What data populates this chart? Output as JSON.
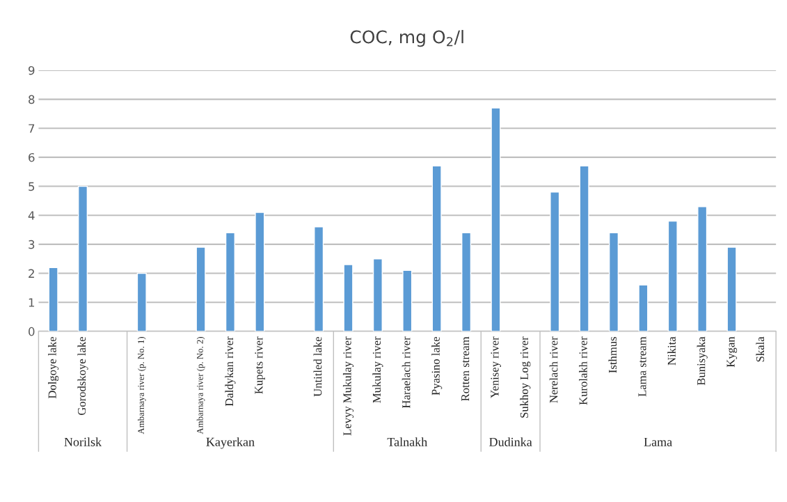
{
  "chart_data": {
    "type": "bar",
    "title": "COC, mg O$_{2}$/l",
    "categories": [
      "Dolgoye lake",
      "Gorodskoye lake",
      null,
      "Ambarnaya river (p. No. 1)",
      null,
      "Ambarnaya river (p. No. 2)",
      "Daldykan river",
      "Kupets river",
      null,
      "Untitled lake",
      "Levyy Mukulay river",
      "Mukulay river",
      "Haraelach river",
      "Pyasino lake",
      "Rotten stream",
      "Yenisey river",
      "Sukhoy Log river",
      "Nerelach river",
      "Kurolakh river",
      "Isthmus",
      "Lama stream",
      "Nikita",
      "Bunisyaka",
      "Kygan",
      "Skala"
    ],
    "values": [
      2.2,
      5.0,
      null,
      2.0,
      null,
      2.9,
      3.4,
      4.1,
      null,
      3.6,
      2.3,
      2.5,
      2.1,
      5.7,
      3.4,
      7.7,
      null,
      4.8,
      5.7,
      3.4,
      1.6,
      3.8,
      4.3,
      2.9,
      null
    ],
    "color": "#5b9bd5",
    "ylim": [
      0,
      9
    ],
    "yticks": [
      0,
      1,
      2,
      3,
      4,
      5,
      6,
      7,
      8,
      9
    ],
    "grid": "y",
    "annotations": [
      "Norilsk",
      "Kayerkan",
      "Talnakh",
      "Dudinka",
      "Lama"
    ]
  }
}
